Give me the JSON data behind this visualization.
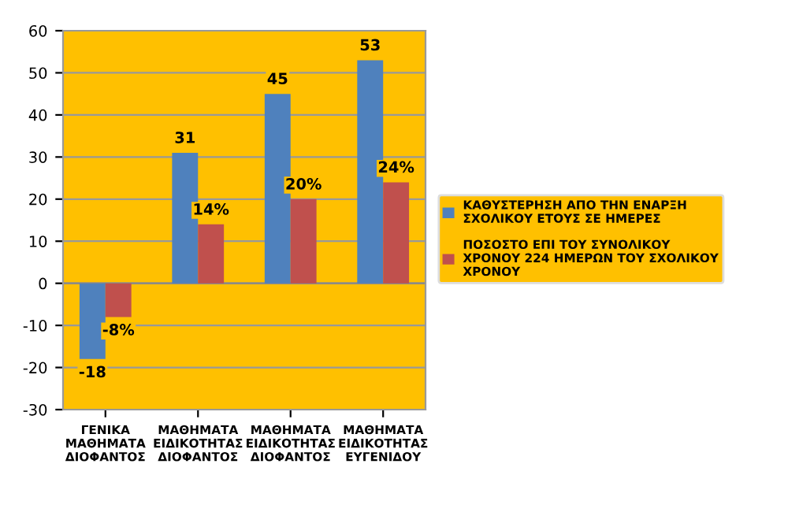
{
  "chart_data": {
    "type": "bar",
    "categories": [
      "ΓΕΝΙΚΑ ΜΑΘΗΜΑΤΑ ΔΙΟΦΑΝΤΟΣ",
      "ΜΑΘΗΜΑΤΑ ΕΙΔΙΚΟΤΗΤΑΣ ΔΙΟΦΑΝΤΟΣ",
      "ΜΑΘΗΜΑΤΑ ΕΙΔΙΚΟΤΗΤΑΣ ΔΙΟΦΑΝΤΟΣ",
      "ΜΑΘΗΜΑΤΑ ΕΙΔΙΚΟΤΗΤΑΣ ΕΥΓΕΝΙΔΟΥ"
    ],
    "series": [
      {
        "name": "ΚΑΘΥΣΤΕΡΗΣΗ ΑΠΟ ΤΗΝ ΕΝΑΡΞΗ ΣΧΟΛΙΚΟΥ ΕΤΟΥΣ ΣΕ ΗΜΕΡΕΣ",
        "color": "#4f81bd",
        "values": [
          -18,
          31,
          45,
          53
        ],
        "value_labels": [
          "-18",
          "31",
          "45",
          "53"
        ]
      },
      {
        "name": "ΠΟΣΟΣΤΟ ΕΠΙ ΤΟΥ ΣΥΝΟΛΙΚΟΥ ΧΡΟΝΟΥ 224 ΗΜΕΡΩΝ ΤΟΥ ΣΧΟΛΙΚΟΥ ΧΡΟΝΟΥ",
        "color": "#c0504d",
        "values": [
          -8,
          14,
          20,
          24
        ],
        "value_labels": [
          "-8%",
          "14%",
          "20%",
          "24%"
        ]
      }
    ],
    "ylim": [
      -30,
      60
    ],
    "yticks": [
      -30,
      -20,
      -10,
      0,
      10,
      20,
      30,
      40,
      50,
      60
    ],
    "grid": "y",
    "legend": "right"
  }
}
